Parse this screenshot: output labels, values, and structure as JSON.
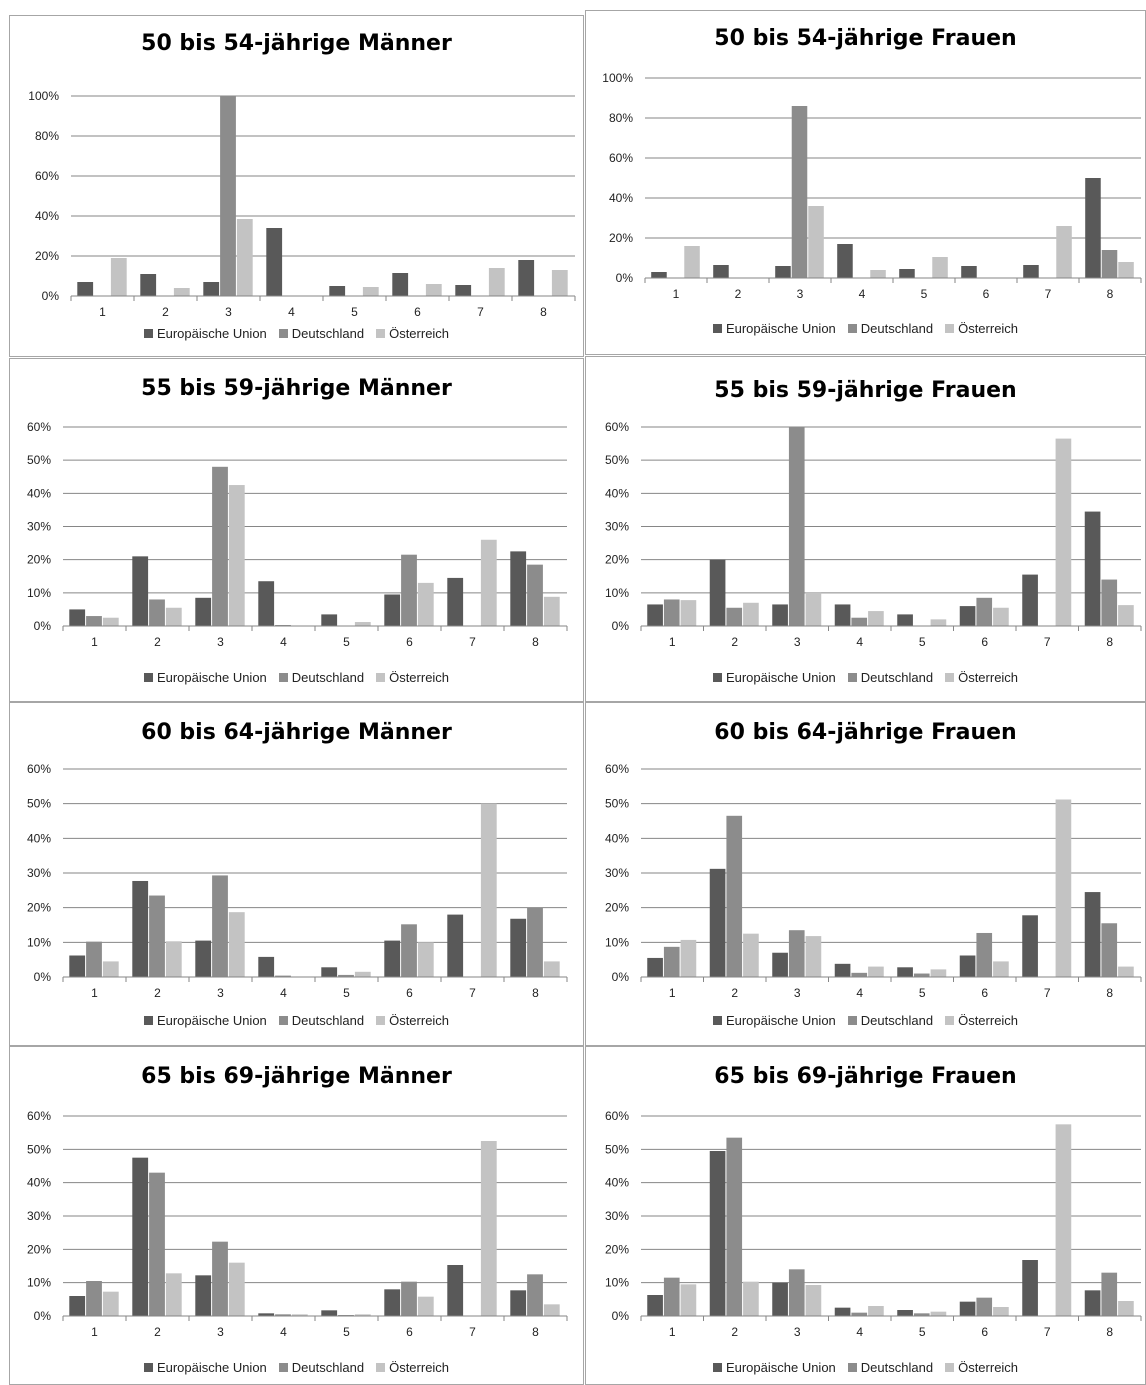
{
  "colors": {
    "eu": "#595959",
    "de": "#8c8c8c",
    "at": "#c3c3c3",
    "grid": "#868686",
    "axis": "#868686",
    "text": "#222222"
  },
  "legend": [
    "Europäische Union",
    "Deutschland",
    "Österreich"
  ],
  "chart_data": [
    {
      "type": "bar",
      "title": "50 bis 54-jährige Männer",
      "categories": [
        "1",
        "2",
        "3",
        "4",
        "5",
        "6",
        "7",
        "8"
      ],
      "ylim": [
        0,
        1
      ],
      "yticks": [
        "0%",
        "20%",
        "40%",
        "60%",
        "80%",
        "100%"
      ],
      "series": [
        {
          "name": "Europäische Union",
          "values": [
            0.07,
            0.11,
            0.07,
            0.34,
            0.05,
            0.115,
            0.055,
            0.18
          ]
        },
        {
          "name": "Deutschland",
          "values": [
            0,
            0,
            1.0,
            0,
            0,
            0,
            0,
            0
          ]
        },
        {
          "name": "Österreich",
          "values": [
            0.19,
            0.04,
            0.385,
            0,
            0.045,
            0.06,
            0.14,
            0.13
          ]
        }
      ]
    },
    {
      "type": "bar",
      "title": "50 bis 54-jährige Frauen",
      "categories": [
        "1",
        "2",
        "3",
        "4",
        "5",
        "6",
        "7",
        "8"
      ],
      "ylim": [
        0,
        1
      ],
      "yticks": [
        "0%",
        "20%",
        "40%",
        "60%",
        "80%",
        "100%"
      ],
      "series": [
        {
          "name": "Europäische Union",
          "values": [
            0.03,
            0.065,
            0.06,
            0.17,
            0.045,
            0.06,
            0.065,
            0.5
          ]
        },
        {
          "name": "Deutschland",
          "values": [
            0,
            0,
            0.86,
            0,
            0,
            0,
            0,
            0.14
          ]
        },
        {
          "name": "Österreich",
          "values": [
            0.16,
            0,
            0.36,
            0.04,
            0.105,
            0,
            0.26,
            0.08
          ]
        }
      ]
    },
    {
      "type": "bar",
      "title": "55 bis 59-jährige Männer",
      "categories": [
        "1",
        "2",
        "3",
        "4",
        "5",
        "6",
        "7",
        "8"
      ],
      "ylim": [
        0,
        0.6
      ],
      "yticks": [
        "0%",
        "10%",
        "20%",
        "30%",
        "40%",
        "50%",
        "60%"
      ],
      "series": [
        {
          "name": "Europäische Union",
          "values": [
            0.05,
            0.21,
            0.085,
            0.135,
            0.035,
            0.095,
            0.145,
            0.225
          ]
        },
        {
          "name": "Deutschland",
          "values": [
            0.03,
            0.08,
            0.48,
            0.003,
            0,
            0.215,
            0,
            0.185
          ]
        },
        {
          "name": "Österreich",
          "values": [
            0.025,
            0.055,
            0.425,
            0,
            0.012,
            0.13,
            0.26,
            0.088
          ]
        }
      ]
    },
    {
      "type": "bar",
      "title": "55 bis 59-jährige Frauen",
      "categories": [
        "1",
        "2",
        "3",
        "4",
        "5",
        "6",
        "7",
        "8"
      ],
      "ylim": [
        0,
        0.6
      ],
      "yticks": [
        "0%",
        "10%",
        "20%",
        "30%",
        "40%",
        "50%",
        "60%"
      ],
      "series": [
        {
          "name": "Europäische Union",
          "values": [
            0.065,
            0.2,
            0.065,
            0.065,
            0.035,
            0.06,
            0.155,
            0.345
          ]
        },
        {
          "name": "Deutschland",
          "values": [
            0.08,
            0.055,
            0.6,
            0.025,
            0,
            0.085,
            0,
            0.14
          ]
        },
        {
          "name": "Österreich",
          "values": [
            0.078,
            0.07,
            0.1,
            0.045,
            0.02,
            0.055,
            0.565,
            0.063
          ]
        }
      ]
    },
    {
      "type": "bar",
      "title": "60 bis 64-jährige Männer",
      "categories": [
        "1",
        "2",
        "3",
        "4",
        "5",
        "6",
        "7",
        "8"
      ],
      "ylim": [
        0,
        0.6
      ],
      "yticks": [
        "0%",
        "10%",
        "20%",
        "30%",
        "40%",
        "50%",
        "60%"
      ],
      "series": [
        {
          "name": "Europäische Union",
          "values": [
            0.062,
            0.277,
            0.105,
            0.058,
            0.028,
            0.105,
            0.18,
            0.168
          ]
        },
        {
          "name": "Deutschland",
          "values": [
            0.102,
            0.235,
            0.293,
            0.004,
            0.006,
            0.152,
            0,
            0.2
          ]
        },
        {
          "name": "Österreich",
          "values": [
            0.045,
            0.103,
            0.187,
            0,
            0.015,
            0.1,
            0.5,
            0.045
          ]
        }
      ]
    },
    {
      "type": "bar",
      "title": "60 bis 64-jährige Frauen",
      "categories": [
        "1",
        "2",
        "3",
        "4",
        "5",
        "6",
        "7",
        "8"
      ],
      "ylim": [
        0,
        0.6
      ],
      "yticks": [
        "0%",
        "10%",
        "20%",
        "30%",
        "40%",
        "50%",
        "60%"
      ],
      "series": [
        {
          "name": "Europäische Union",
          "values": [
            0.055,
            0.312,
            0.07,
            0.038,
            0.028,
            0.062,
            0.178,
            0.245
          ]
        },
        {
          "name": "Deutschland",
          "values": [
            0.087,
            0.465,
            0.135,
            0.012,
            0.01,
            0.127,
            0,
            0.155
          ]
        },
        {
          "name": "Österreich",
          "values": [
            0.107,
            0.125,
            0.118,
            0.03,
            0.022,
            0.045,
            0.512,
            0.03
          ]
        }
      ]
    },
    {
      "type": "bar",
      "title": "65 bis 69-jährige Männer",
      "categories": [
        "1",
        "2",
        "3",
        "4",
        "5",
        "6",
        "7",
        "8"
      ],
      "ylim": [
        0,
        0.6
      ],
      "yticks": [
        "0%",
        "10%",
        "20%",
        "30%",
        "40%",
        "50%",
        "60%"
      ],
      "series": [
        {
          "name": "Europäische Union",
          "values": [
            0.06,
            0.475,
            0.122,
            0.008,
            0.017,
            0.08,
            0.153,
            0.077
          ]
        },
        {
          "name": "Deutschland",
          "values": [
            0.105,
            0.43,
            0.223,
            0.005,
            0.003,
            0.103,
            0,
            0.125
          ]
        },
        {
          "name": "Österreich",
          "values": [
            0.073,
            0.128,
            0.16,
            0.005,
            0.005,
            0.058,
            0.525,
            0.035
          ]
        }
      ]
    },
    {
      "type": "bar",
      "title": "65 bis 69-jährige Frauen",
      "categories": [
        "1",
        "2",
        "3",
        "4",
        "5",
        "6",
        "7",
        "8"
      ],
      "ylim": [
        0,
        0.6
      ],
      "yticks": [
        "0%",
        "10%",
        "20%",
        "30%",
        "40%",
        "50%",
        "60%"
      ],
      "series": [
        {
          "name": "Europäische Union",
          "values": [
            0.063,
            0.495,
            0.1,
            0.025,
            0.018,
            0.043,
            0.168,
            0.077
          ]
        },
        {
          "name": "Deutschland",
          "values": [
            0.115,
            0.535,
            0.14,
            0.01,
            0.008,
            0.055,
            0,
            0.13
          ]
        },
        {
          "name": "Österreich",
          "values": [
            0.095,
            0.103,
            0.093,
            0.03,
            0.013,
            0.027,
            0.575,
            0.045
          ]
        }
      ]
    }
  ]
}
